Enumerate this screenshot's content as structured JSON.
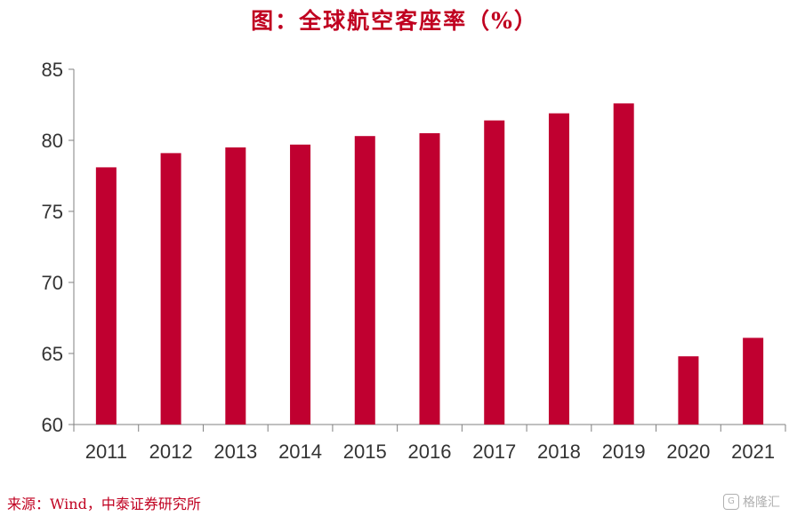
{
  "title": "图：全球航空客座率（%）",
  "source": "来源：Wind，中泰证券研究所",
  "watermark": {
    "text": "格隆汇",
    "icon": "logo-icon"
  },
  "colors": {
    "bar": "#c00030",
    "title": "#c00020",
    "axis": "#808080",
    "text": "#333333"
  },
  "chart_data": {
    "type": "bar",
    "categories": [
      "2011",
      "2012",
      "2013",
      "2014",
      "2015",
      "2016",
      "2017",
      "2018",
      "2019",
      "2020",
      "2021"
    ],
    "values": [
      78.1,
      79.1,
      79.5,
      79.7,
      80.3,
      80.5,
      81.4,
      81.9,
      82.6,
      64.8,
      66.1
    ],
    "title": "",
    "xlabel": "",
    "ylabel": "",
    "ylim": [
      60,
      85
    ],
    "yticks": [
      60,
      65,
      70,
      75,
      80,
      85
    ],
    "grid": false,
    "legend": "none"
  }
}
